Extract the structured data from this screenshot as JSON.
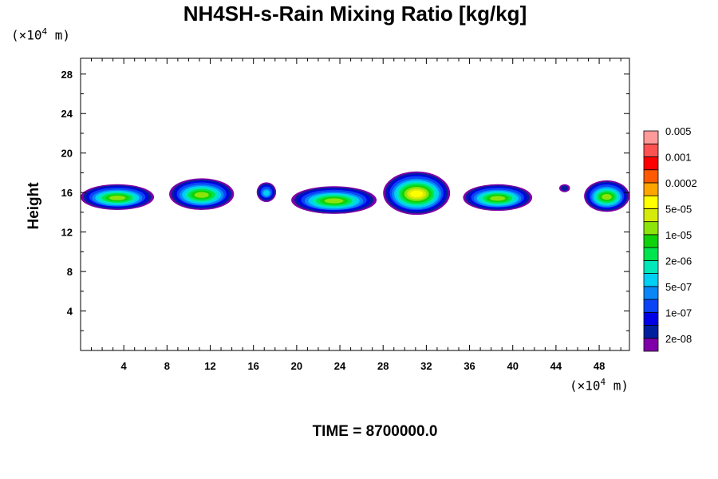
{
  "title": "NH4SH-s-Rain Mixing Ratio [kg/kg]",
  "time_label": "TIME = 8700000.0",
  "y_unit": {
    "prefix": "(×10",
    "exp": "4",
    "suffix": " m)"
  },
  "x_unit": {
    "prefix": "(×10",
    "exp": "4",
    "suffix": " m)"
  },
  "chart_data": {
    "type": "heatmap",
    "title": "NH4SH-s-Rain Mixing Ratio [kg/kg]",
    "xlabel": "",
    "ylabel": "Height",
    "x_range": [
      0,
      50.8
    ],
    "y_range": [
      0,
      29.6
    ],
    "x_ticks": [
      "4",
      "8",
      "12",
      "16",
      "20",
      "24",
      "28",
      "32",
      "36",
      "40",
      "44",
      "48"
    ],
    "y_ticks": [
      "4",
      "8",
      "12",
      "16",
      "20",
      "24",
      "28"
    ],
    "colorbar": {
      "colors": [
        "#7f00a8",
        "#001f9e",
        "#0000e6",
        "#0a45f5",
        "#0a86f7",
        "#00cff6",
        "#00e7ba",
        "#00e54e",
        "#10d20a",
        "#8de40a",
        "#d6ea0a",
        "#ffff00",
        "#ffa500",
        "#ff5a00",
        "#ff0000",
        "#ff5252",
        "#ff9a9a"
      ],
      "labels": [
        "2e-08",
        "1e-07",
        "5e-07",
        "2e-06",
        "1e-05",
        "5e-05",
        "0.0002",
        "0.001",
        "0.005"
      ]
    },
    "features": [
      {
        "x": [
          0,
          6.8
        ],
        "y": [
          14.4,
          17.0
        ],
        "peak": "1e-05"
      },
      {
        "x": [
          8.2,
          14.2
        ],
        "y": [
          14.4,
          17.6
        ],
        "peak": "1e-05"
      },
      {
        "x": [
          16.3,
          18.1
        ],
        "y": [
          15.2,
          17.2
        ],
        "peak": "5e-07"
      },
      {
        "x": [
          19.5,
          27.4
        ],
        "y": [
          14.0,
          16.8
        ],
        "peak": "1e-05"
      },
      {
        "x": [
          28.0,
          34.2
        ],
        "y": [
          13.9,
          18.3
        ],
        "peak": "5e-05"
      },
      {
        "x": [
          35.4,
          41.8
        ],
        "y": [
          14.3,
          17.0
        ],
        "peak": "1e-05"
      },
      {
        "x": [
          44.3,
          45.3
        ],
        "y": [
          16.2,
          17.0
        ],
        "peak": "2e-08"
      },
      {
        "x": [
          46.6,
          50.8
        ],
        "y": [
          14.2,
          17.4
        ],
        "peak": "1e-05"
      }
    ]
  }
}
